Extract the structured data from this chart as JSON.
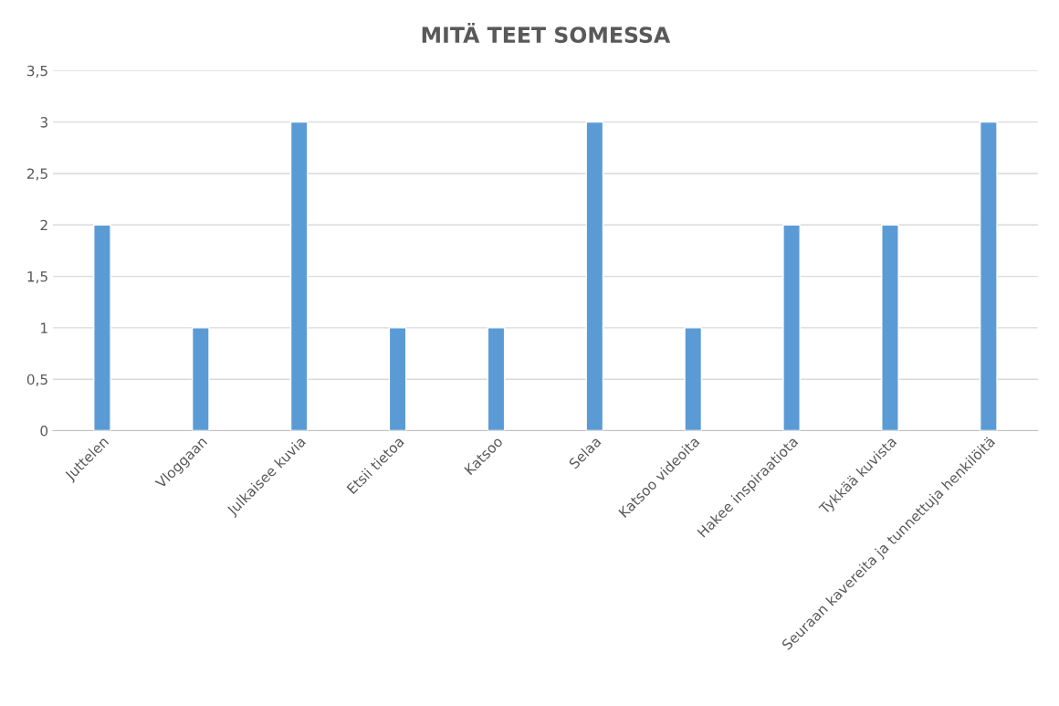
{
  "chart_data": {
    "type": "bar",
    "title": "MITÄ TEET SOMESSA",
    "categories": [
      "Juttelen",
      "Vloggaan",
      "Julkaisee kuvia",
      "Etsii tietoa",
      "Katsoo",
      "Selaa",
      "Katsoo videoita",
      "Hakee inspiraatiota",
      "Tykkää kuvista",
      "Seuraan kavereita ja tunnettuja henkilöitä"
    ],
    "values": [
      2,
      1,
      3,
      1,
      1,
      3,
      1,
      2,
      2,
      3
    ],
    "color": "#5b9bd5",
    "ylim": [
      0,
      3.5
    ],
    "yticks": [
      0,
      {
        "value": 0.5,
        "label": "0,5"
      },
      1,
      {
        "value": 1.5,
        "label": "1,5"
      },
      2,
      {
        "value": 2.5,
        "label": "2,5"
      },
      3,
      {
        "value": 3.5,
        "label": "3,5"
      }
    ],
    "grid": "y",
    "legend": false
  }
}
